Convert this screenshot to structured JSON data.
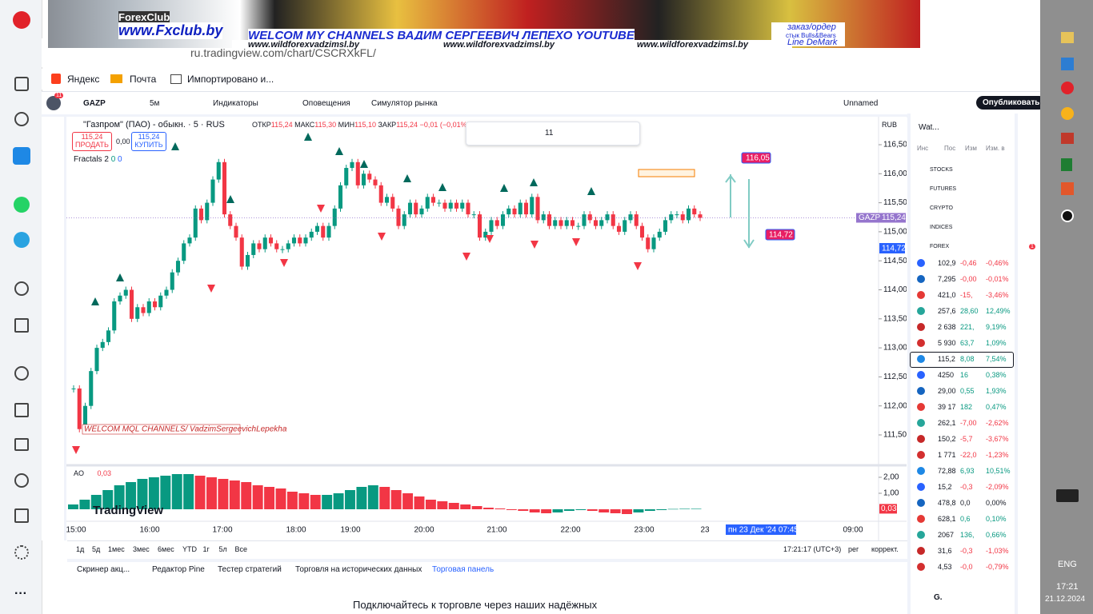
{
  "banner": {
    "brand": "ForexClub",
    "site": "www.Fxclub.by",
    "headline": "WELCOM MY CHANNELS ВАДИМ СЕРГЕЕВИЧ ЛЕПЕХО YOUTUBE",
    "links": [
      "www.wildforexvadzimsl.by",
      "www.wildforexvadzimsl.by",
      "www.wildforexvadzimsl.by"
    ],
    "side": [
      "заказ/ордер",
      "стык Bulls&Bears",
      "Line DeMark"
    ]
  },
  "browser": {
    "url": "ru.tradingview.com/chart/CSCRXkFL/",
    "bookmarks": [
      "Яндекс",
      "Почта",
      "Импортировано и..."
    ]
  },
  "toolbar": {
    "badge": "11",
    "symbol": "GAZP",
    "interval": "5м",
    "items": [
      "Индикаторы",
      "Оповещения",
      "Симулятор рынка"
    ],
    "layout": "Unnamed",
    "publish": "Опубликовать"
  },
  "legend": {
    "title": "\"Газпром\" (ПАО) - обыкн. · 5 · RUS",
    "o": "ОТКР",
    "ov": "115,24",
    "h": "МАКС",
    "hv": "115,30",
    "l": "МИН",
    "lv": "115,10",
    "c": "ЗАКР",
    "cv": "115,24",
    "chg": "−0,01 (−0,01%)",
    "sell": "115,24",
    "sell_label": "ПРОДАТЬ",
    "spread": "0,00",
    "buy": "115,24",
    "buy_label": "КУПИТЬ",
    "fractals": "Fractals 2",
    "f1": "0",
    "f2": "0",
    "font_size": "11"
  },
  "chart": {
    "currency": "RUB",
    "price_ticks": [
      {
        "value": 116.5,
        "label": "116,50"
      },
      {
        "value": 116,
        "label": "116,00"
      },
      {
        "value": 115.5,
        "label": "115,50"
      },
      {
        "value": 115,
        "label": "115,00"
      },
      {
        "value": 114.5,
        "label": "114,50"
      },
      {
        "value": 114,
        "label": "114,00"
      },
      {
        "value": 113.5,
        "label": "113,50"
      },
      {
        "value": 113,
        "label": "113,00"
      },
      {
        "value": 112.5,
        "label": "112,50"
      },
      {
        "value": 112,
        "label": "112,00"
      },
      {
        "value": 111.5,
        "label": "111,50"
      }
    ],
    "symbol_tag": "GAZP",
    "last": "115,24",
    "level_tag": "114,72",
    "drawing_labels": [
      "116,05",
      "114,72"
    ],
    "note": "WELCOM MQL CHANNELS/ VadzimSergeevichLepekha",
    "closes": [
      112.3,
      111.6,
      112.0,
      112.6,
      113.0,
      113.1,
      113.3,
      113.8,
      113.9,
      114.0,
      113.5,
      113.7,
      113.6,
      113.8,
      113.7,
      113.9,
      114.0,
      114.3,
      114.5,
      114.8,
      114.9,
      115.4,
      115.2,
      115.5,
      115.9,
      116.2,
      115.3,
      115.1,
      114.9,
      114.4,
      114.6,
      114.8,
      114.7,
      114.9,
      114.8,
      114.7,
      114.7,
      114.8,
      114.9,
      114.8,
      114.9,
      115.0,
      115.1,
      114.9,
      115.1,
      115.4,
      115.8,
      116.1,
      116.2,
      115.8,
      116.0,
      115.9,
      115.8,
      115.5,
      115.6,
      115.4,
      115.1,
      115.3,
      115.5,
      115.3,
      115.4,
      115.6,
      115.5,
      115.5,
      115.4,
      115.5,
      115.4,
      115.5,
      115.3,
      115.3,
      114.9,
      115.0,
      115.2,
      115.1,
      115.3,
      115.4,
      115.3,
      115.5,
      115.3,
      115.6,
      115.2,
      115.3,
      115.1,
      115.2,
      115.1,
      115.2,
      115.1,
      115.1,
      115.3,
      115.2,
      115.1,
      115.2,
      115.3,
      115.1,
      115.0,
      115.2,
      115.3,
      115.1,
      114.9,
      114.7,
      114.9,
      115.0,
      115.2,
      115.3,
      115.3,
      115.2,
      115.4,
      115.3,
      115.24
    ],
    "ao_label": "AO",
    "ao_value": "0,03",
    "ao_ticks": [
      {
        "value": 2,
        "label": "2,00"
      },
      {
        "value": 1,
        "label": "1,00"
      }
    ],
    "ao_last": {
      "value": 0.03,
      "label": "0,03"
    },
    "ao": [
      0.3,
      0.6,
      0.9,
      1.2,
      1.5,
      1.7,
      1.9,
      2.0,
      2.1,
      2.2,
      2.2,
      2.1,
      2.0,
      1.9,
      1.8,
      1.7,
      1.5,
      1.4,
      1.3,
      1.1,
      1.0,
      0.9,
      0.9,
      1.0,
      1.2,
      1.4,
      1.5,
      1.4,
      1.2,
      1.0,
      0.8,
      0.6,
      0.5,
      0.4,
      0.3,
      0.2,
      0.1,
      0.05,
      -0.05,
      -0.1,
      -0.2,
      -0.25,
      -0.2,
      -0.1,
      -0.05,
      -0.1,
      -0.2,
      -0.25,
      -0.3,
      -0.2,
      -0.1,
      -0.05,
      0.02,
      0.03,
      0.03
    ],
    "logo": "TradingView",
    "times": [
      "15:00",
      "16:00",
      "17:00",
      "18:00",
      "19:00",
      "20:00",
      "21:00",
      "22:00",
      "23:00",
      "23",
      "пн 23 Дек '24   07:45",
      "09:00"
    ]
  },
  "bottom": {
    "ranges": [
      "1д",
      "5д",
      "1мес",
      "3мес",
      "6мес",
      "YTD",
      "1г",
      "5л",
      "Все"
    ],
    "clock": "17:21:17 (UTC+3)",
    "session": "рег",
    "adjust": "коррект.",
    "tabs": [
      "Скринер акц...",
      "Редактор Pine",
      "Тестер стратегий",
      "Торговля на исторических данных",
      "Торговая панель"
    ],
    "footer": "Подключайтесь к торговле через наших надёжных"
  },
  "watchlist": {
    "title": "Wat...",
    "columns": [
      "Инс",
      "Пос",
      "Изм",
      "Изм. в"
    ],
    "sections": [
      "STOCKS",
      "FUTURES",
      "CRYPTO",
      "INDICES",
      "FOREX"
    ],
    "selected": 6,
    "alert_badge": "1",
    "footer": "G.",
    "rows": [
      {
        "last": "102,9",
        "chg": "-0,46",
        "pct": "-0,46%",
        "color": "#f23645"
      },
      {
        "last": "7,295",
        "chg": "-0,00",
        "pct": "-0,01%",
        "color": "#f23645"
      },
      {
        "last": "421,0",
        "chg": "-15,",
        "pct": "-3,46%",
        "color": "#f23645"
      },
      {
        "last": "257,6",
        "chg": "28,60",
        "pct": "12,49%",
        "color": "#089981"
      },
      {
        "last": "2 638",
        "chg": "221,",
        "pct": "9,19%",
        "color": "#089981"
      },
      {
        "last": "5 930",
        "chg": "63,7",
        "pct": "1,09%",
        "color": "#089981"
      },
      {
        "last": "115,2",
        "chg": "8,08",
        "pct": "7,54%",
        "color": "#089981"
      },
      {
        "last": "4250",
        "chg": "16",
        "pct": "0,38%",
        "color": "#089981"
      },
      {
        "last": "29,00",
        "chg": "0,55",
        "pct": "1,93%",
        "color": "#089981"
      },
      {
        "last": "39 17",
        "chg": "182",
        "pct": "0,47%",
        "color": "#089981"
      },
      {
        "last": "262,1",
        "chg": "-7,00",
        "pct": "-2,62%",
        "color": "#f23645"
      },
      {
        "last": "150,2",
        "chg": "-5,7",
        "pct": "-3,67%",
        "color": "#f23645"
      },
      {
        "last": "1 771",
        "chg": "-22,0",
        "pct": "-1,23%",
        "color": "#f23645"
      },
      {
        "last": "72,88",
        "chg": "6,93",
        "pct": "10,51%",
        "color": "#089981"
      },
      {
        "last": "15,2",
        "chg": "-0,3",
        "pct": "-2,09%",
        "color": "#f23645"
      },
      {
        "last": "478,8",
        "chg": "0,0",
        "pct": "0,00%",
        "color": "#131722"
      },
      {
        "last": "628,1",
        "chg": "0,6",
        "pct": "0,10%",
        "color": "#089981"
      },
      {
        "last": "2067",
        "chg": "136,",
        "pct": "0,66%",
        "color": "#089981"
      },
      {
        "last": "31,6",
        "chg": "-0,3",
        "pct": "-1,03%",
        "color": "#f23645"
      },
      {
        "last": "4,53",
        "chg": "-0,0",
        "pct": "-0,79%",
        "color": "#f23645"
      }
    ]
  },
  "taskbar": {
    "lang": "ENG",
    "time": "17:21",
    "date": "21.12.2024"
  }
}
